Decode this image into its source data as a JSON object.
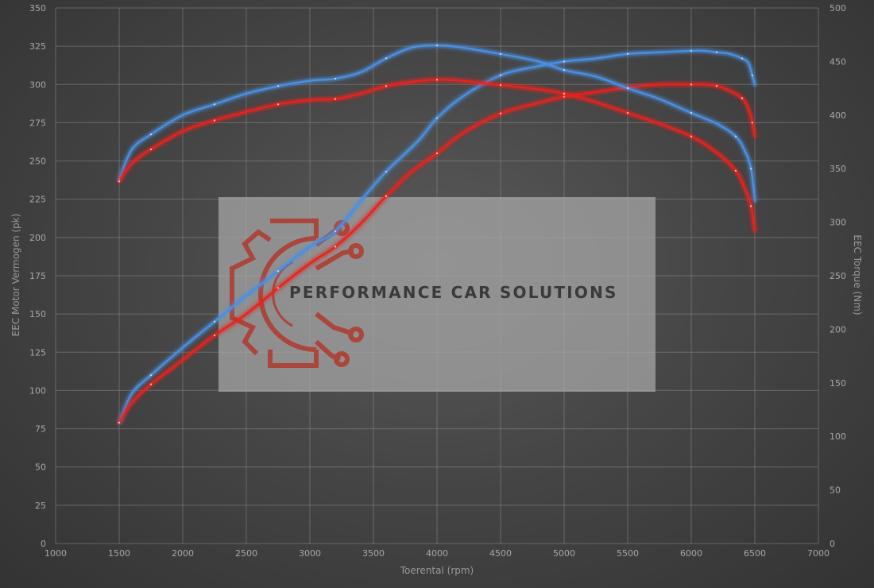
{
  "chart_data": {
    "type": "line",
    "xlabel": "Toerental (rpm)",
    "ylabel": "EEC Motor Vermogen (pk)",
    "y2label": "EEC Torque (Nm)",
    "xlim": [
      1000,
      7000
    ],
    "xticks": [
      1000,
      1500,
      2000,
      2500,
      3000,
      3500,
      4000,
      4500,
      5000,
      5500,
      6000,
      6500,
      7000
    ],
    "ylim": [
      0,
      350
    ],
    "yticks": [
      0,
      25,
      50,
      75,
      100,
      125,
      150,
      175,
      200,
      225,
      250,
      275,
      300,
      325,
      350
    ],
    "y2lim": [
      0,
      500
    ],
    "y2ticks": [
      0,
      50,
      100,
      150,
      200,
      250,
      300,
      350,
      400,
      450,
      500
    ],
    "grid": true,
    "series": [
      {
        "axis": "left",
        "color": "#4a90e2",
        "x": [
          1500,
          1600,
          1750,
          2000,
          2250,
          2500,
          2750,
          3000,
          3200,
          3400,
          3600,
          3850,
          4000,
          4200,
          4500,
          4800,
          5000,
          5250,
          5500,
          5750,
          6000,
          6100,
          6200,
          6300,
          6400,
          6450,
          6480,
          6500
        ],
        "y": [
          79,
          98,
          110,
          128,
          145,
          162,
          178,
          194,
          204,
          224,
          243,
          263,
          278,
          292,
          306,
          312,
          315,
          317,
          320,
          321,
          322,
          322,
          321,
          320,
          317,
          314,
          306,
          300
        ]
      },
      {
        "axis": "left",
        "color": "#e8201e",
        "x": [
          1500,
          1600,
          1750,
          2000,
          2250,
          2500,
          2750,
          3000,
          3200,
          3400,
          3600,
          3800,
          4000,
          4200,
          4500,
          4800,
          5000,
          5250,
          5500,
          5750,
          6000,
          6100,
          6200,
          6300,
          6400,
          6450,
          6480,
          6500
        ],
        "y": [
          79,
          92,
          104,
          120,
          136,
          150,
          167,
          183,
          194,
          209,
          227,
          243,
          255,
          268,
          281,
          288,
          292,
          295,
          298,
          300,
          300,
          300,
          299,
          296,
          291,
          284,
          275,
          266
        ]
      },
      {
        "axis": "right",
        "color": "#4a90e2",
        "x": [
          1500,
          1600,
          1750,
          2000,
          2250,
          2500,
          2750,
          3000,
          3200,
          3400,
          3600,
          3800,
          4000,
          4200,
          4500,
          4800,
          5000,
          5250,
          5500,
          5750,
          6000,
          6200,
          6350,
          6420,
          6470,
          6500
        ],
        "y": [
          340,
          368,
          382,
          400,
          410,
          420,
          427,
          432,
          434,
          440,
          453,
          463,
          465,
          463,
          457,
          450,
          442,
          436,
          425,
          415,
          402,
          392,
          380,
          367,
          350,
          320
        ]
      },
      {
        "axis": "right",
        "color": "#e8201e",
        "x": [
          1500,
          1600,
          1750,
          2000,
          2250,
          2500,
          2750,
          3000,
          3200,
          3400,
          3600,
          3800,
          4000,
          4200,
          4500,
          4800,
          5000,
          5250,
          5500,
          5750,
          6000,
          6200,
          6350,
          6420,
          6470,
          6500
        ],
        "y": [
          338,
          355,
          368,
          385,
          395,
          403,
          410,
          414,
          415,
          420,
          427,
          431,
          433,
          432,
          428,
          424,
          420,
          412,
          402,
          392,
          380,
          365,
          348,
          332,
          315,
          292
        ]
      }
    ]
  },
  "watermark": {
    "text": "PERFORMANCE CAR SOLUTIONS",
    "icon": "gear-circuit-logo-icon",
    "logo_color": "#c0392b"
  }
}
